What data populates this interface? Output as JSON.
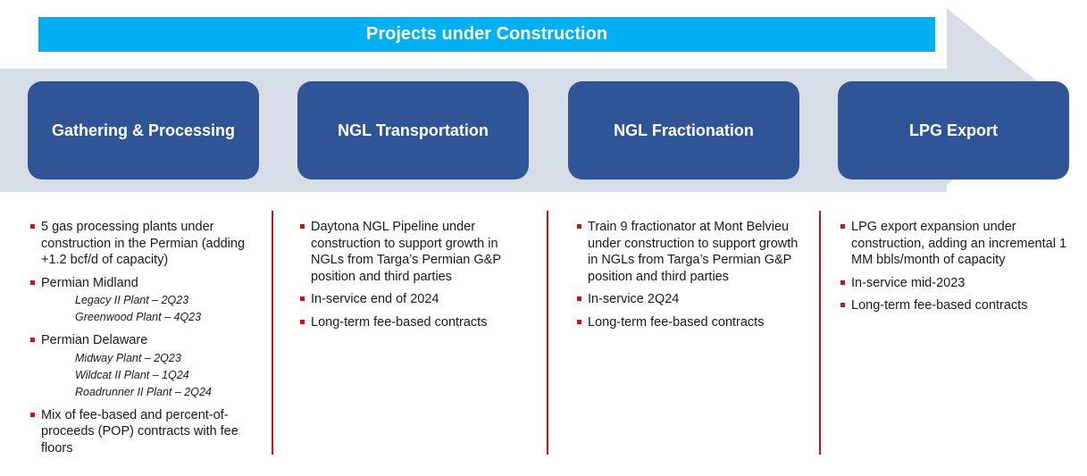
{
  "banner": "Projects under Construction",
  "stages": [
    "Gathering & Processing",
    "NGL Transportation",
    "NGL Fractionation",
    "LPG Export"
  ],
  "columns": [
    {
      "bullets": [
        {
          "text": "5 gas processing plants under construction in the Permian (adding +1.2 bcf/d of capacity)",
          "sub": []
        },
        {
          "text": "Permian Midland",
          "sub": [
            "Legacy II Plant – 2Q23",
            "Greenwood Plant – 4Q23"
          ]
        },
        {
          "text": "Permian Delaware",
          "sub": [
            "Midway Plant – 2Q23",
            "Wildcat II Plant – 1Q24",
            "Roadrunner II Plant – 2Q24"
          ]
        },
        {
          "text": "Mix of fee-based and percent-of-proceeds (POP) contracts with fee floors",
          "sub": []
        }
      ]
    },
    {
      "bullets": [
        {
          "text": "Daytona NGL Pipeline under construction to support growth in NGLs from Targa’s Permian G&P position and third parties",
          "sub": []
        },
        {
          "text": "In-service end of 2024",
          "sub": []
        },
        {
          "text": "Long-term fee-based contracts",
          "sub": []
        }
      ]
    },
    {
      "bullets": [
        {
          "text": "Train 9 fractionator at Mont Belvieu under construction to support growth in NGLs from Targa’s Permian G&P position and third parties",
          "sub": []
        },
        {
          "text": "In-service 2Q24",
          "sub": []
        },
        {
          "text": "Long-term fee-based contracts",
          "sub": []
        }
      ]
    },
    {
      "bullets": [
        {
          "text": "LPG export expansion under construction, adding an incremental 1 MM bbls/month of capacity",
          "sub": []
        },
        {
          "text": "In-service mid-2023",
          "sub": []
        },
        {
          "text": "Long-term fee-based contracts",
          "sub": []
        }
      ]
    }
  ]
}
